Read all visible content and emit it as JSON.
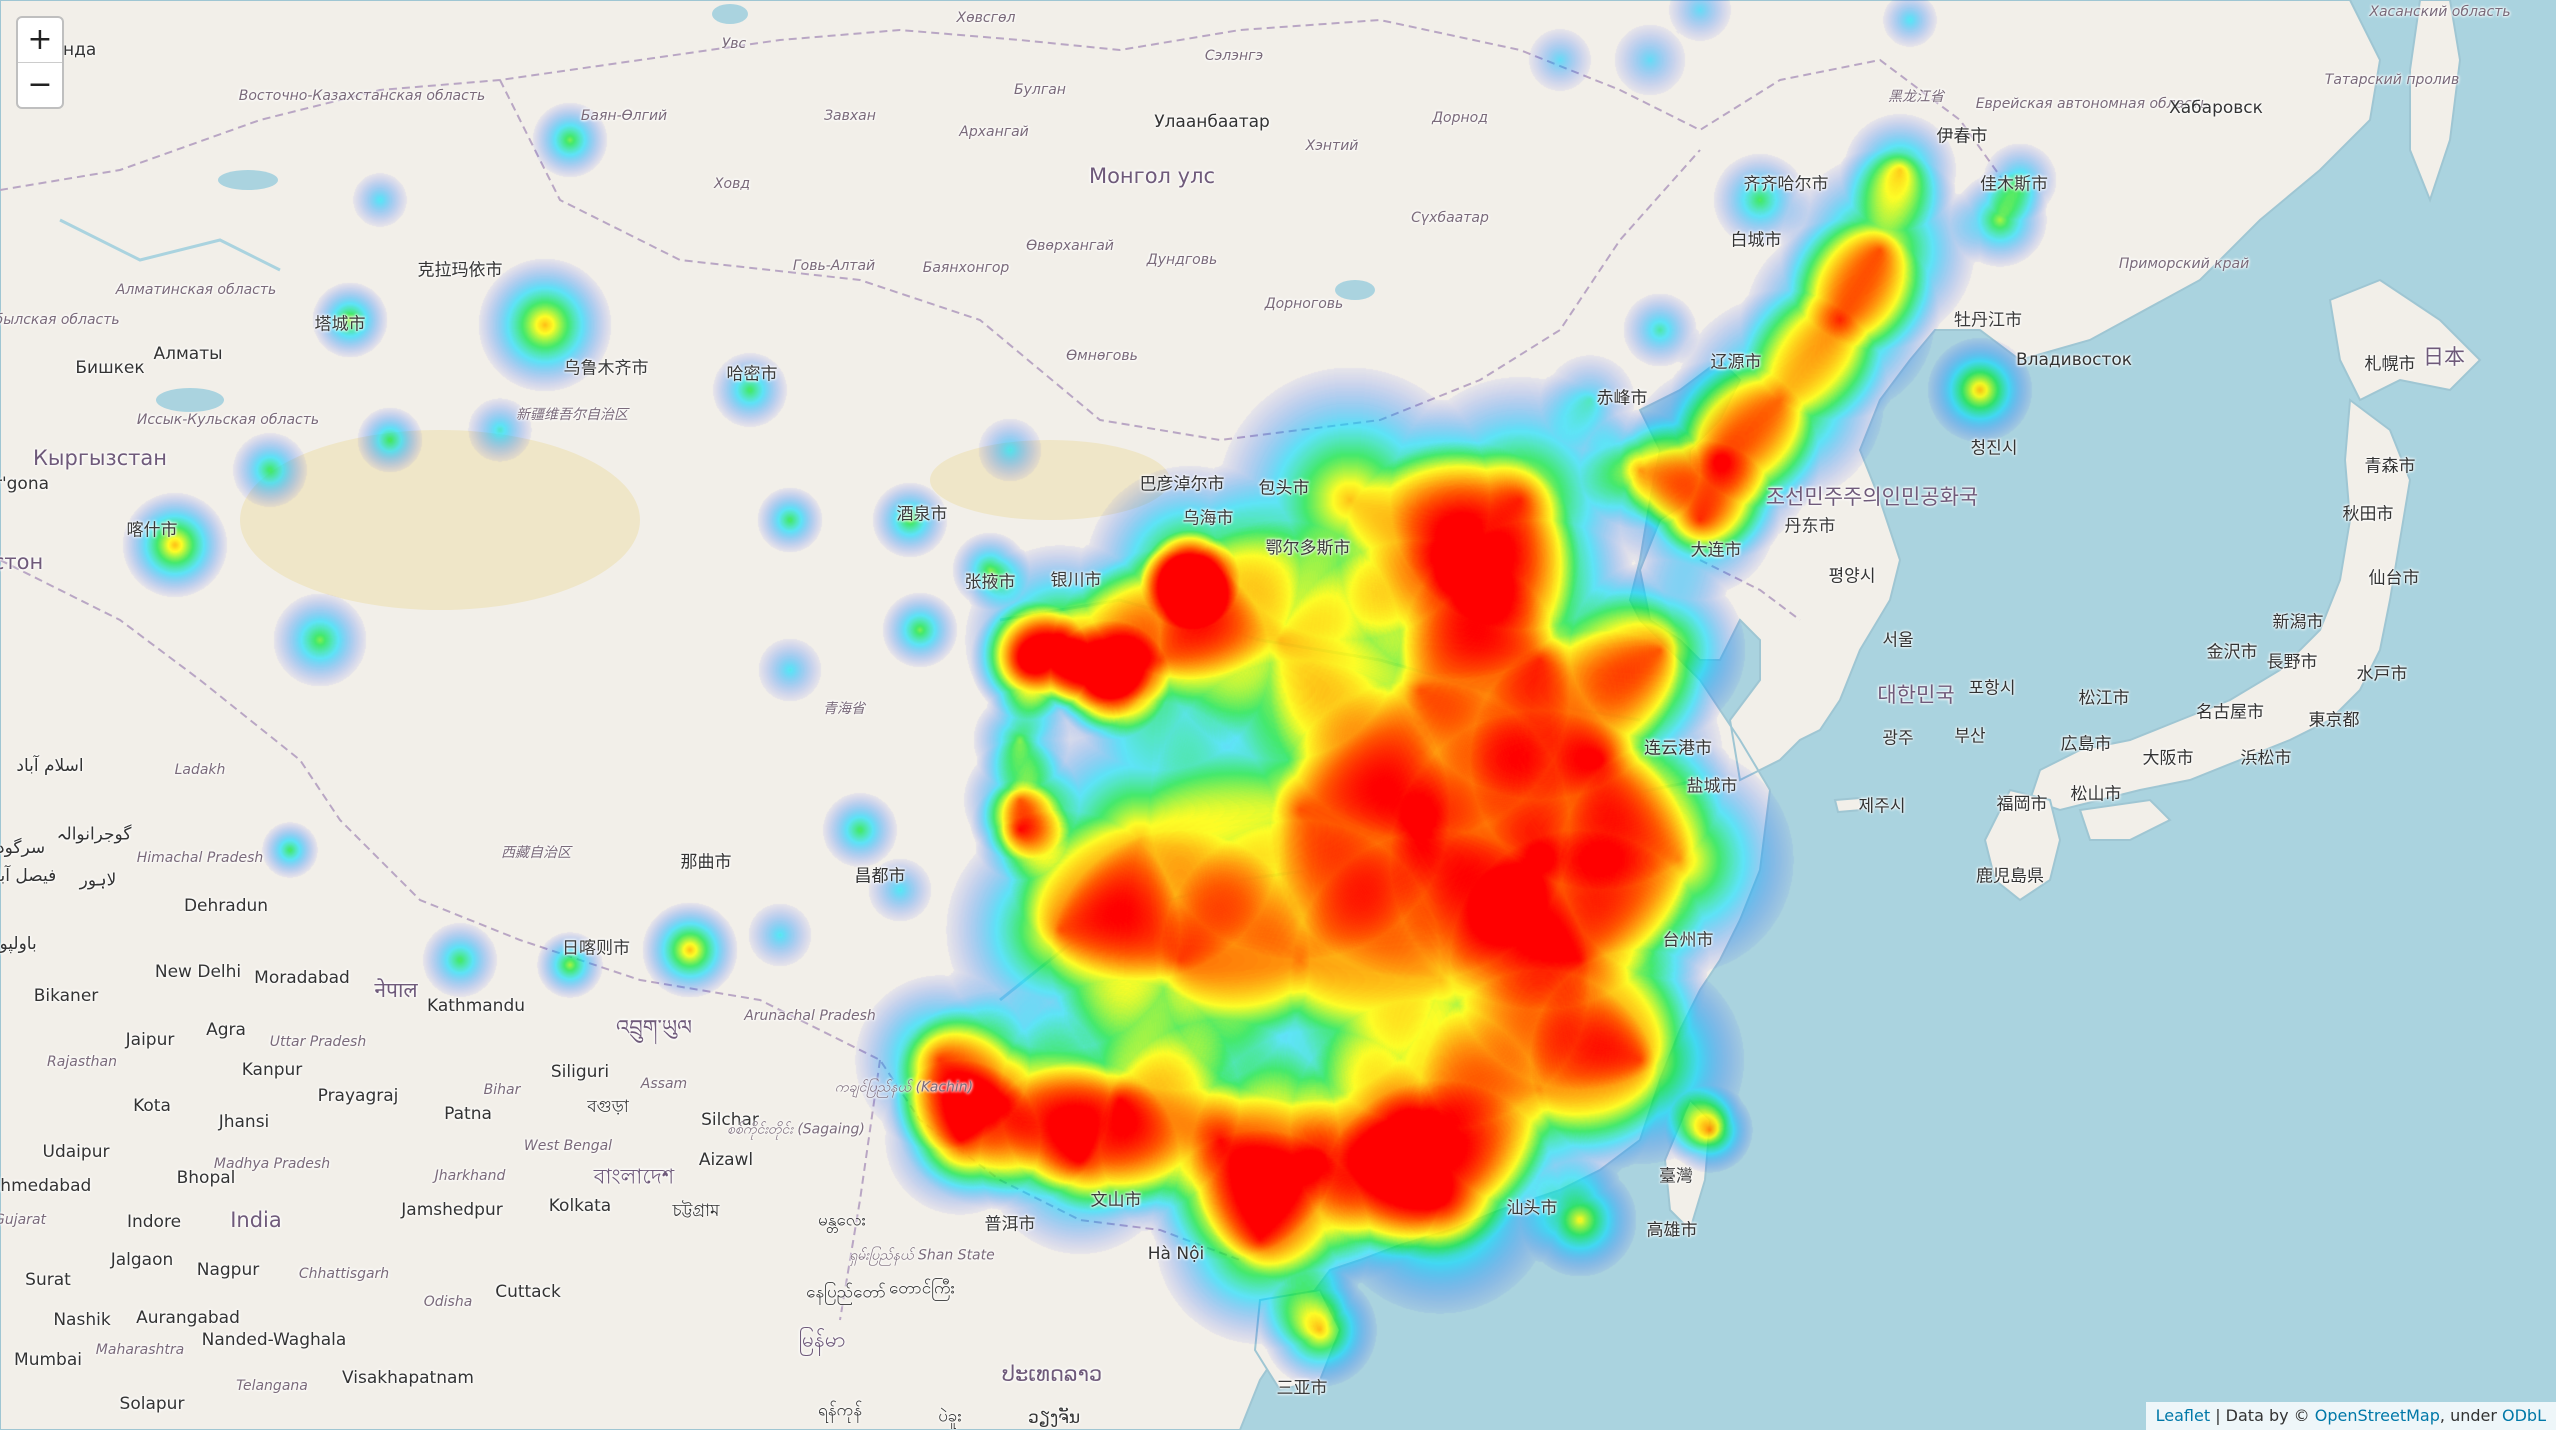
{
  "map": {
    "zoom_in_label": "+",
    "zoom_out_label": "−",
    "attribution": {
      "leaflet": "Leaflet",
      "sep": " | ",
      "data_by": "Data by © ",
      "osm": "OpenStreetMap",
      "under": ", under ",
      "license": "ODbL"
    },
    "colors": {
      "water": "#aad3df",
      "land": "#f2efe9",
      "border": "#b9a6c4",
      "heat_low": "#3b4cff",
      "heat_high": "#ff0000"
    },
    "labels": [
      {
        "id": "label-khasan",
        "text": "Хасанский область",
        "kind": "region"
      },
      {
        "id": "label-yevreyskaya",
        "text": "Еврейская автономная область",
        "kind": "region"
      },
      {
        "id": "label-khabarovsk",
        "text": "Хабаровск",
        "kind": "city"
      },
      {
        "id": "label-tatarskiy",
        "text": "Татарский пролив",
        "kind": "region"
      },
      {
        "id": "label-primorskiy",
        "text": "Приморский край",
        "kind": "region"
      },
      {
        "id": "label-vladivostok",
        "text": "Владивосток",
        "kind": "city"
      },
      {
        "id": "label-sapporo",
        "text": "札幌市",
        "kind": "city"
      },
      {
        "id": "label-japan",
        "text": "日本",
        "kind": "country"
      },
      {
        "id": "label-aomori",
        "text": "青森市",
        "kind": "city"
      },
      {
        "id": "label-akita",
        "text": "秋田市",
        "kind": "city"
      },
      {
        "id": "label-sendai",
        "text": "仙台市",
        "kind": "city"
      },
      {
        "id": "label-niigata",
        "text": "新潟市",
        "kind": "city"
      },
      {
        "id": "label-kanazawa",
        "text": "金沢市",
        "kind": "city"
      },
      {
        "id": "label-nagano",
        "text": "長野市",
        "kind": "city"
      },
      {
        "id": "label-mito",
        "text": "水戸市",
        "kind": "city"
      },
      {
        "id": "label-matsue",
        "text": "松江市",
        "kind": "city"
      },
      {
        "id": "label-nagoya",
        "text": "名古屋市",
        "kind": "city"
      },
      {
        "id": "label-tokyo",
        "text": "東京都",
        "kind": "city"
      },
      {
        "id": "label-hiroshima",
        "text": "広島市",
        "kind": "city"
      },
      {
        "id": "label-osaka",
        "text": "大阪市",
        "kind": "city"
      },
      {
        "id": "label-hamamatsu",
        "text": "浜松市",
        "kind": "city"
      },
      {
        "id": "label-fukuoka",
        "text": "福岡市",
        "kind": "city"
      },
      {
        "id": "label-matsuyama",
        "text": "松山市",
        "kind": "city"
      },
      {
        "id": "label-kagoshima",
        "text": "鹿児島県",
        "kind": "city"
      },
      {
        "id": "label-jeju",
        "text": "제주시",
        "kind": "city"
      },
      {
        "id": "label-busan",
        "text": "부산",
        "kind": "city"
      },
      {
        "id": "label-gwangju",
        "text": "광주",
        "kind": "city"
      },
      {
        "id": "label-pohang",
        "text": "포항시",
        "kind": "city"
      },
      {
        "id": "label-korea",
        "text": "대한민국",
        "kind": "country"
      },
      {
        "id": "label-seoul",
        "text": "서울",
        "kind": "city"
      },
      {
        "id": "label-pyongyang",
        "text": "평양시",
        "kind": "city"
      },
      {
        "id": "label-dprk",
        "text": "조선민주주의인민공화국",
        "kind": "country"
      },
      {
        "id": "label-chongjin",
        "text": "청진시",
        "kind": "city"
      },
      {
        "id": "label-heilongjiang",
        "text": "黑龙江省",
        "kind": "region"
      },
      {
        "id": "label-yichun",
        "text": "伊春市",
        "kind": "city"
      },
      {
        "id": "label-jiamusi",
        "text": "佳木斯市",
        "kind": "heat"
      },
      {
        "id": "label-mudanjiang",
        "text": "牡丹江市",
        "kind": "heat"
      },
      {
        "id": "label-qiqihar",
        "text": "齐齐哈尔市",
        "kind": "heat"
      },
      {
        "id": "label-baicheng",
        "text": "白城市",
        "kind": "city"
      },
      {
        "id": "label-liaoyuan",
        "text": "辽源市",
        "kind": "heat"
      },
      {
        "id": "label-chifeng",
        "text": "赤峰市",
        "kind": "city"
      },
      {
        "id": "label-dandong",
        "text": "丹东市",
        "kind": "heat"
      },
      {
        "id": "label-dalian",
        "text": "大连市",
        "kind": "heat"
      },
      {
        "id": "label-yancheng",
        "text": "盐城市",
        "kind": "heat"
      },
      {
        "id": "label-lianyungang",
        "text": "连云港市",
        "kind": "city"
      },
      {
        "id": "label-taizhou",
        "text": "台州市",
        "kind": "heat"
      },
      {
        "id": "label-taiwan",
        "text": "臺灣",
        "kind": "heat"
      },
      {
        "id": "label-kaohsiung",
        "text": "高雄市",
        "kind": "city"
      },
      {
        "id": "label-shantou",
        "text": "汕头市",
        "kind": "heat"
      },
      {
        "id": "label-sanya",
        "text": "三亚市",
        "kind": "heat"
      },
      {
        "id": "label-hanoi",
        "text": "Hà Nội",
        "kind": "city"
      },
      {
        "id": "label-wenshan",
        "text": "文山市",
        "kind": "heat"
      },
      {
        "id": "label-puer",
        "text": "普洱市",
        "kind": "heat"
      },
      {
        "id": "label-baotou",
        "text": "包头市",
        "kind": "city"
      },
      {
        "id": "label-bayannur",
        "text": "巴彦淖尔市",
        "kind": "city"
      },
      {
        "id": "label-wuhai",
        "text": "乌海市",
        "kind": "heat"
      },
      {
        "id": "label-ordos",
        "text": "鄂尔多斯市",
        "kind": "heat"
      },
      {
        "id": "label-qinghai",
        "text": "青海省",
        "kind": "region"
      },
      {
        "id": "label-qamdo",
        "text": "昌都市",
        "kind": "city"
      },
      {
        "id": "label-nagqu",
        "text": "那曲市",
        "kind": "city"
      },
      {
        "id": "label-xizang",
        "text": "西藏自治区",
        "kind": "region"
      },
      {
        "id": "label-shigatse",
        "text": "日喀则市",
        "kind": "heat"
      },
      {
        "id": "label-xinjiang",
        "text": "新疆维吾尔自治区",
        "kind": "region"
      },
      {
        "id": "label-kelamayi",
        "text": "克拉玛依市",
        "kind": "city"
      },
      {
        "id": "label-tacheng",
        "text": "塔城市",
        "kind": "heat"
      },
      {
        "id": "label-urumqi",
        "text": "乌鲁木齐市",
        "kind": "heat"
      },
      {
        "id": "label-hami",
        "text": "哈密市",
        "kind": "heat"
      },
      {
        "id": "label-jiuquan",
        "text": "酒泉市",
        "kind": "heat"
      },
      {
        "id": "label-zhangye",
        "text": "张掖市",
        "kind": "heat"
      },
      {
        "id": "label-yinchuan",
        "text": "银川市",
        "kind": "heat"
      },
      {
        "id": "label-kashgar",
        "text": "喀什市",
        "kind": "heat"
      },
      {
        "id": "label-ulaanbaatar",
        "text": "Улаанбаатар",
        "kind": "city"
      },
      {
        "id": "label-mongolia",
        "text": "Монгол улс",
        "kind": "country"
      },
      {
        "id": "label-khevsgel",
        "text": "Хөвсгөл",
        "kind": "region"
      },
      {
        "id": "label-uvs",
        "text": "Увс",
        "kind": "region"
      },
      {
        "id": "label-bulgan",
        "text": "Булган",
        "kind": "region"
      },
      {
        "id": "label-selenge",
        "text": "Сэлэнгэ",
        "kind": "region"
      },
      {
        "id": "label-zavkhan",
        "text": "Завхан",
        "kind": "region"
      },
      {
        "id": "label-arkhangai",
        "text": "Архангай",
        "kind": "region"
      },
      {
        "id": "label-khentii",
        "text": "Хэнтий",
        "kind": "region"
      },
      {
        "id": "label-dornod",
        "text": "Дорнод",
        "kind": "region"
      },
      {
        "id": "label-bayan-olgii",
        "text": "Баян-Өлгий",
        "kind": "region"
      },
      {
        "id": "label-khovd",
        "text": "Ховд",
        "kind": "region"
      },
      {
        "id": "label-govi-altai",
        "text": "Говь-Алтай",
        "kind": "region"
      },
      {
        "id": "label-bayankhongor",
        "text": "Баянхонгор",
        "kind": "region"
      },
      {
        "id": "label-uvurkhangai",
        "text": "Өвөрхангай",
        "kind": "region"
      },
      {
        "id": "label-dundgovi",
        "text": "Дундговь",
        "kind": "region"
      },
      {
        "id": "label-dornogovi",
        "text": "Дорноговь",
        "kind": "region"
      },
      {
        "id": "label-umnugovi",
        "text": "Өмнөговь",
        "kind": "region"
      },
      {
        "id": "label-sukhbaatar",
        "text": "Сүхбаатар",
        "kind": "region"
      },
      {
        "id": "label-vostochno",
        "text": "Восточно-Казахстанская область",
        "kind": "region"
      },
      {
        "id": "label-almaty-obl",
        "text": "Алматинская область",
        "kind": "region"
      },
      {
        "id": "label-almaty",
        "text": "Алматы",
        "kind": "city"
      },
      {
        "id": "label-bishkek",
        "text": "Бишкек",
        "kind": "city"
      },
      {
        "id": "label-issyk-kul",
        "text": "Иссык-Кульская область",
        "kind": "region"
      },
      {
        "id": "label-kyrgyzstan",
        "text": "Кыргызстан",
        "kind": "country"
      },
      {
        "id": "label-zhambyl",
        "text": "Жамбылская область",
        "kind": "region"
      },
      {
        "id": "label-ganda",
        "text": "ганда",
        "kind": "city"
      },
      {
        "id": "label-rgona",
        "text": "r'gona",
        "kind": "city"
      },
      {
        "id": "label-ston",
        "text": "стон",
        "kind": "country"
      },
      {
        "id": "label-islamabad",
        "text": "اسلام آباد",
        "kind": "city"
      },
      {
        "id": "label-ladakh",
        "text": "Ladakh",
        "kind": "region"
      },
      {
        "id": "label-gujranwala",
        "text": "گوجرانوالہ",
        "kind": "city"
      },
      {
        "id": "label-lahore",
        "text": "لاہور",
        "kind": "city"
      },
      {
        "id": "label-faisalabad",
        "text": "فیصل آباد",
        "kind": "city"
      },
      {
        "id": "label-sargodha",
        "text": "سرگودھا",
        "kind": "city"
      },
      {
        "id": "label-bahawalpur",
        "text": "باولپور",
        "kind": "city"
      },
      {
        "id": "label-himachal",
        "text": "Himachal Pradesh",
        "kind": "region"
      },
      {
        "id": "label-dehradun",
        "text": "Dehradun",
        "kind": "city"
      },
      {
        "id": "label-new-delhi",
        "text": "New Delhi",
        "kind": "city"
      },
      {
        "id": "label-moradabad",
        "text": "Moradabad",
        "kind": "city"
      },
      {
        "id": "label-nepal",
        "text": "नेपाल",
        "kind": "country"
      },
      {
        "id": "label-kathmandu",
        "text": "Kathmandu",
        "kind": "city"
      },
      {
        "id": "label-bikaner",
        "text": "Bikaner",
        "kind": "city"
      },
      {
        "id": "label-jaipur",
        "text": "Jaipur",
        "kind": "city"
      },
      {
        "id": "label-agra",
        "text": "Agra",
        "kind": "city"
      },
      {
        "id": "label-uttar-pradesh",
        "text": "Uttar Pradesh",
        "kind": "region"
      },
      {
        "id": "label-rajasthan",
        "text": "Rajasthan",
        "kind": "region"
      },
      {
        "id": "label-kanpur",
        "text": "Kanpur",
        "kind": "city"
      },
      {
        "id": "label-prayagraj",
        "text": "Prayagraj",
        "kind": "city"
      },
      {
        "id": "label-bihar",
        "text": "Bihar",
        "kind": "region"
      },
      {
        "id": "label-patna",
        "text": "Patna",
        "kind": "city"
      },
      {
        "id": "label-siliguri",
        "text": "Siliguri",
        "kind": "city"
      },
      {
        "id": "label-bhutan",
        "text": "འབྲུག་ཡུལ",
        "kind": "country"
      },
      {
        "id": "label-assam",
        "text": "Assam",
        "kind": "region"
      },
      {
        "id": "label-arunachal",
        "text": "Arunachal Pradesh",
        "kind": "region"
      },
      {
        "id": "label-kota",
        "text": "Kota",
        "kind": "city"
      },
      {
        "id": "label-jhansi",
        "text": "Jhansi",
        "kind": "city"
      },
      {
        "id": "label-udaipur",
        "text": "Udaipur",
        "kind": "city"
      },
      {
        "id": "label-madhya",
        "text": "Madhya Pradesh",
        "kind": "region"
      },
      {
        "id": "label-bhopal",
        "text": "Bhopal",
        "kind": "city"
      },
      {
        "id": "label-ahmedabad",
        "text": "Ahmedabad",
        "kind": "city"
      },
      {
        "id": "label-india",
        "text": "India",
        "kind": "country"
      },
      {
        "id": "label-indore",
        "text": "Indore",
        "kind": "city"
      },
      {
        "id": "label-jharkhand",
        "text": "Jharkhand",
        "kind": "region"
      },
      {
        "id": "label-jamshedpur",
        "text": "Jamshedpur",
        "kind": "city"
      },
      {
        "id": "label-kolkata",
        "text": "Kolkata",
        "kind": "city"
      },
      {
        "id": "label-west-bengal",
        "text": "West Bengal",
        "kind": "region"
      },
      {
        "id": "label-bangladesh",
        "text": "বাংলাদেশ",
        "kind": "country"
      },
      {
        "id": "label-silchar",
        "text": "Silchar",
        "kind": "city"
      },
      {
        "id": "label-aizawl",
        "text": "Aizawl",
        "kind": "city"
      },
      {
        "id": "label-gujarat",
        "text": "Gujarat",
        "kind": "region"
      },
      {
        "id": "label-jalgaon",
        "text": "Jalgaon",
        "kind": "city"
      },
      {
        "id": "label-nagpur",
        "text": "Nagpur",
        "kind": "city"
      },
      {
        "id": "label-chhattisgarh",
        "text": "Chhattisgarh",
        "kind": "region"
      },
      {
        "id": "label-surat",
        "text": "Surat",
        "kind": "city"
      },
      {
        "id": "label-odisha",
        "text": "Odisha",
        "kind": "region"
      },
      {
        "id": "label-cuttack",
        "text": "Cuttack",
        "kind": "city"
      },
      {
        "id": "label-nashik",
        "text": "Nashik",
        "kind": "city"
      },
      {
        "id": "label-aurangabad",
        "text": "Aurangabad",
        "kind": "city"
      },
      {
        "id": "label-maharashtra",
        "text": "Maharashtra",
        "kind": "region"
      },
      {
        "id": "label-nanded",
        "text": "Nanded-Waghala",
        "kind": "city"
      },
      {
        "id": "label-mumbai",
        "text": "Mumbai",
        "kind": "city"
      },
      {
        "id": "label-visakhapatnam",
        "text": "Visakhapatnam",
        "kind": "city"
      },
      {
        "id": "label-telangana",
        "text": "Telangana",
        "kind": "region"
      },
      {
        "id": "label-solapur",
        "text": "Solapur",
        "kind": "city"
      },
      {
        "id": "label-myanmar",
        "text": "မြန်မာ",
        "kind": "country"
      },
      {
        "id": "label-kachin",
        "text": "ကချင်ပြည်နယ် (Kachin)",
        "kind": "region"
      },
      {
        "id": "label-sagaing",
        "text": "စစ်ကိုင်းတိုင်း (Sagaing)",
        "kind": "region"
      },
      {
        "id": "label-mandalay",
        "text": "မန္တလေး",
        "kind": "city"
      },
      {
        "id": "label-shan",
        "text": "ရှမ်းပြည်နယ် Shan State",
        "kind": "region"
      },
      {
        "id": "label-taunggyi",
        "text": "တောင်ကြီး",
        "kind": "city"
      },
      {
        "id": "label-naypyidaw",
        "text": "နေပြည်တော်",
        "kind": "city"
      },
      {
        "id": "label-laos",
        "text": "ປະເທດລາວ",
        "kind": "country"
      },
      {
        "id": "label-yangon",
        "text": "ရန်ကုန်",
        "kind": "city"
      },
      {
        "id": "label-chittagong",
        "text": "চট্টগ্রাম",
        "kind": "city"
      },
      {
        "id": "label-bangla-city",
        "text": "বগুড়া",
        "kind": "city"
      },
      {
        "id": "label-bago",
        "text": "ပဲခူး",
        "kind": "city"
      },
      {
        "id": "label-vientiane",
        "text": "ວຽງຈັນ",
        "kind": "city"
      }
    ]
  }
}
